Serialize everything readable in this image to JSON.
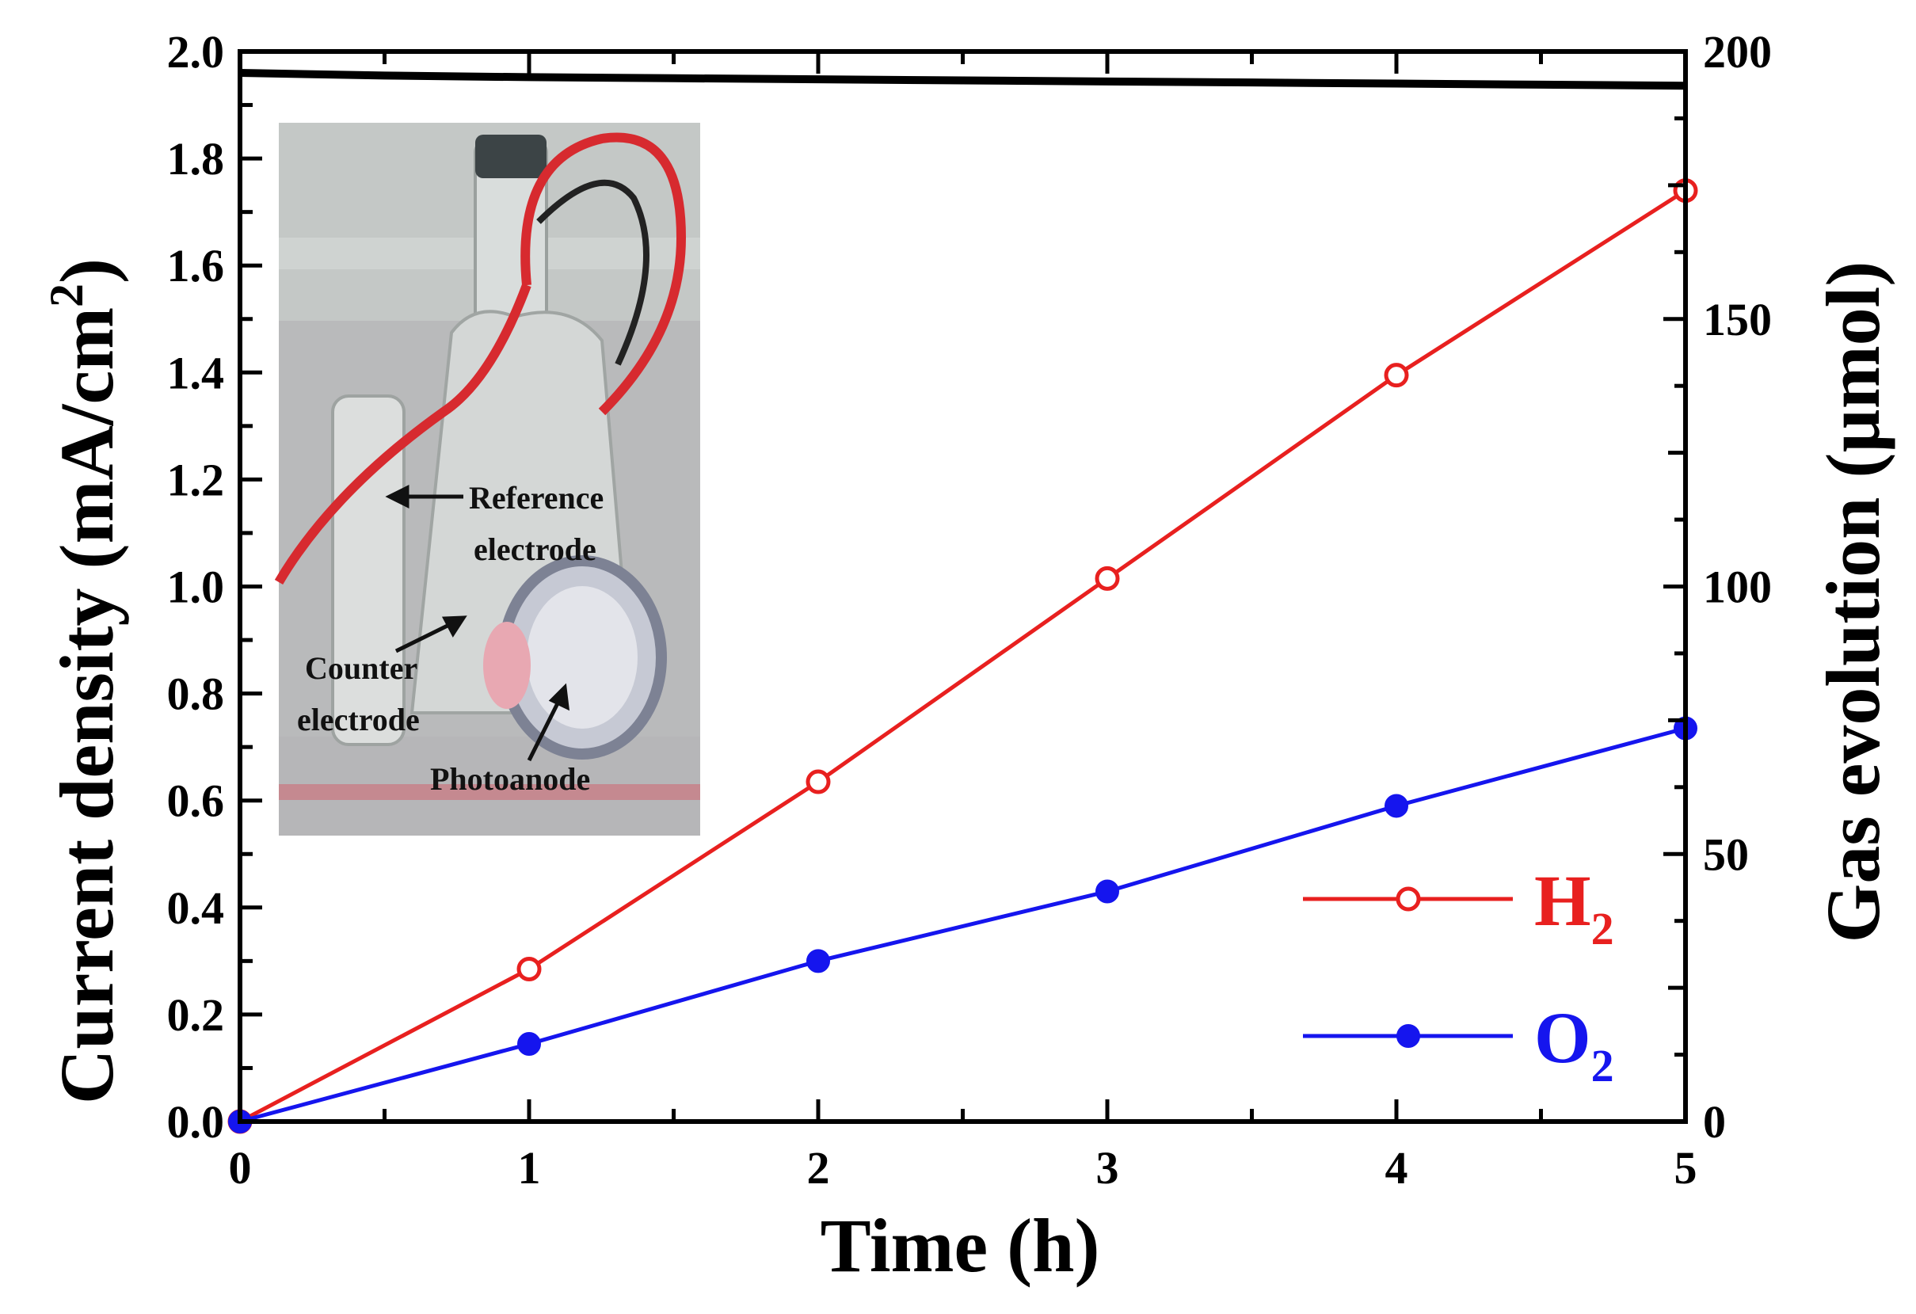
{
  "chart_data": {
    "type": "line",
    "xlabel": "Time (h)",
    "ylabel_left": "Current density (mA/cm",
    "ylabel_left_sup": "2",
    "ylabel_left_close": ")",
    "ylabel_right": "Gas evolution (µmol)",
    "xlim": [
      0,
      5
    ],
    "ylim_left": [
      0,
      2.0
    ],
    "ylim_right": [
      0,
      200
    ],
    "x_ticks": [
      "0",
      "1",
      "2",
      "3",
      "4",
      "5"
    ],
    "y_left_ticks": [
      "0.0",
      "0.2",
      "0.4",
      "0.6",
      "0.8",
      "1.0",
      "1.2",
      "1.4",
      "1.6",
      "1.8",
      "2.0"
    ],
    "y_right_ticks": [
      "0",
      "50",
      "100",
      "150",
      "200"
    ],
    "current_density": {
      "x": [
        0,
        0.5,
        1,
        1.5,
        2,
        2.5,
        3,
        3.5,
        4,
        4.5,
        5
      ],
      "y": [
        1.96,
        1.955,
        1.952,
        1.95,
        1.948,
        1.946,
        1.944,
        1.942,
        1.94,
        1.938,
        1.936
      ]
    },
    "series": [
      {
        "name": "H",
        "sub": "2",
        "color": "#e8201f",
        "marker": "open-circle",
        "x": [
          0,
          1,
          2,
          3,
          4,
          5
        ],
        "y": [
          0,
          28.5,
          63.5,
          101.5,
          139.5,
          174
        ]
      },
      {
        "name": "O",
        "sub": "2",
        "color": "#1515ee",
        "marker": "filled-circle",
        "x": [
          0,
          1,
          2,
          3,
          4,
          5
        ],
        "y": [
          0,
          14.5,
          30,
          43,
          59,
          73.5
        ]
      }
    ],
    "legend": "bottom-right",
    "inset": {
      "labels": [
        "Reference",
        "electrode",
        "Counter",
        "electrode",
        "Photoanode"
      ]
    }
  }
}
